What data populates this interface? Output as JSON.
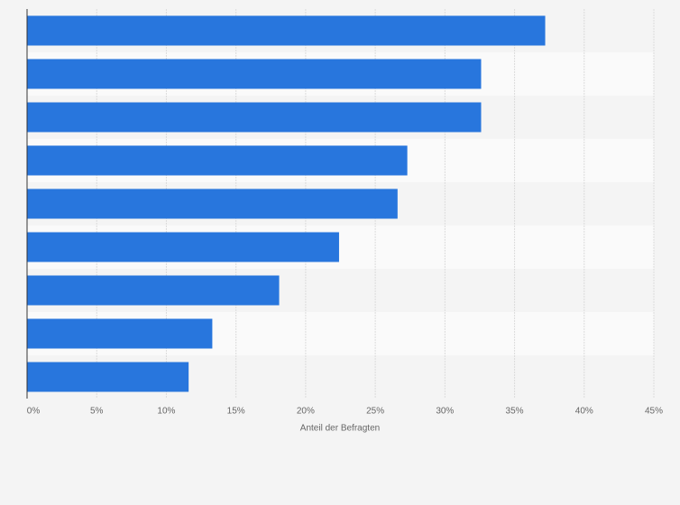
{
  "chart_data": {
    "type": "hbar",
    "categories": [
      null,
      null,
      null,
      null,
      null,
      null,
      null,
      null,
      null
    ],
    "values": [
      37.2,
      32.6,
      32.6,
      27.3,
      26.6,
      22.4,
      18.1,
      13.3,
      11.6
    ],
    "color": "#2876dd",
    "xlabel": "Anteil der Befragten",
    "xlim": [
      0,
      45
    ],
    "xticks": [
      {
        "value": 0,
        "label": "0%"
      },
      {
        "value": 5,
        "label": "5%"
      },
      {
        "value": 10,
        "label": "10%"
      },
      {
        "value": 15,
        "label": "15%"
      },
      {
        "value": 20,
        "label": "20%"
      },
      {
        "value": 25,
        "label": "25%"
      },
      {
        "value": 30,
        "label": "30%"
      },
      {
        "value": 35,
        "label": "35%"
      },
      {
        "value": 40,
        "label": "40%"
      },
      {
        "value": 45,
        "label": "45%"
      }
    ],
    "grid": true
  }
}
